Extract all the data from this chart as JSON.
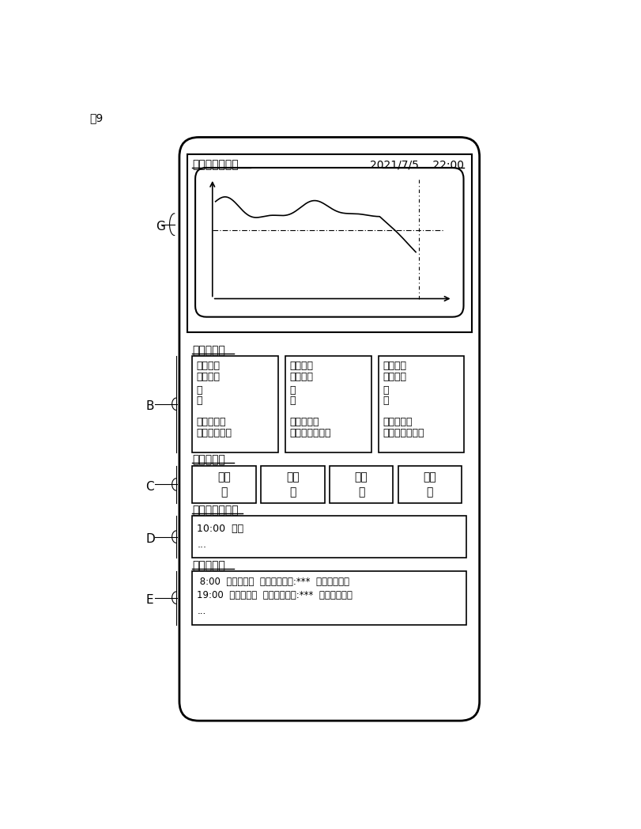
{
  "fig_label": "図9",
  "graph_section_title": "・血糖値グラフ",
  "datetime": "2021/7/5    22:00",
  "meal_proposal_title": "・食事提案",
  "meal_record_title": "・食事記録",
  "schedule_title": "・スケジュール",
  "activity_title": "・活動記録",
  "meal_proposals": [
    {
      "title": "＜朝食＞",
      "line1": "推奨献立",
      "line2": "・",
      "line3": "・",
      "line4": "推奨時間帯",
      "line5": "９時～１０時"
    },
    {
      "title": "＜昼食＞",
      "line1": "推奨献立",
      "line2": "・",
      "line3": "・",
      "line4": "推奨時間帯",
      "line5": "１３時～１４時"
    },
    {
      "title": "＜夕食＞",
      "line1": "推奨献立",
      "line2": "・",
      "line3": "・",
      "line4": "推奨時間帯",
      "line5": "１９時～２０時"
    }
  ],
  "meal_records": [
    {
      "name": "朝食",
      "status": "済"
    },
    {
      "name": "昼食",
      "status": "済"
    },
    {
      "name": "間食",
      "status": "未"
    },
    {
      "name": "夕食",
      "status": "未"
    }
  ],
  "schedule_line1": "10:00  会議",
  "schedule_line2": "...",
  "activity_line1": " 8:00  徒歩３０分  消費カロリー:***  運動強度：小",
  "activity_line2": "19:00  徒歩３０分  消費カロリー:***  運動強度：小",
  "activity_line3": "...",
  "label_G": "G",
  "label_B": "B",
  "label_C": "C",
  "label_D": "D",
  "label_E": "E",
  "background": "#ffffff"
}
